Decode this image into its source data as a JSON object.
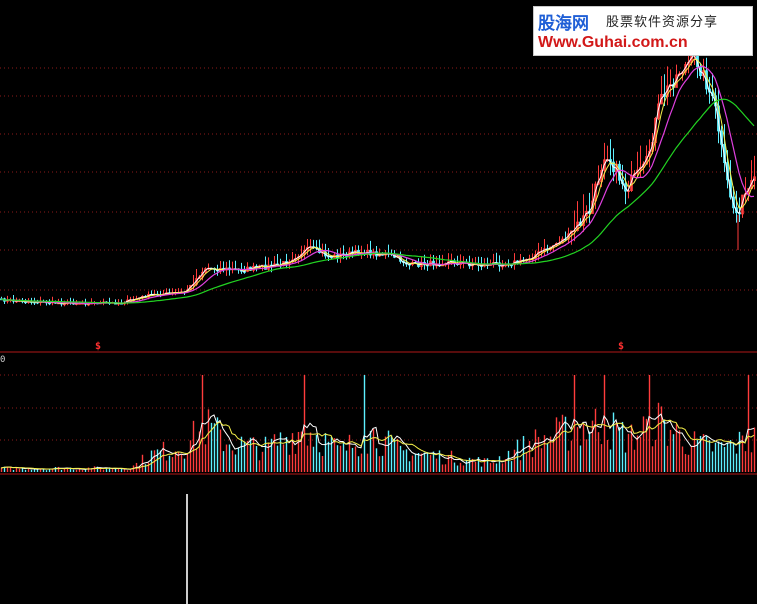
{
  "watermark": {
    "site_name_cn": "股海网",
    "tagline_cn": "股票软件资源分享",
    "url": "Www.Guhai.com.cn"
  },
  "signals": [
    "$",
    "$"
  ],
  "colors": {
    "background": "#000000",
    "grid": "#8b1a1a",
    "separator": "#b01818",
    "up": "#ff3c3c",
    "down": "#5ef0ff",
    "ma_short": "#ffffff",
    "ma_mid": "#f5f04a",
    "ma_long": "#e040e0",
    "ma_trend": "#22d322"
  },
  "chart_data": {
    "type": "candlestick+volume",
    "title": "",
    "price_panel": {
      "moving_averages": [
        "ma_short",
        "ma_mid",
        "ma_long",
        "ma_trend"
      ],
      "trend": "flat base, slow rise, pullback, sharp rally to peak then sharp drop"
    },
    "volume_panel": {
      "tick_label": "0",
      "trend": "low volume early, clusters with the price moves, highest near end"
    },
    "indicator_panel": {
      "spike": "single tall vertical spike near left side"
    },
    "grid": true
  }
}
